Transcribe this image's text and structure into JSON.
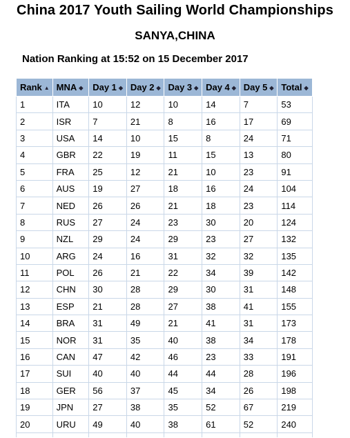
{
  "header": {
    "title": "China 2017 Youth Sailing World Championships",
    "location": "SANYA,CHINA",
    "subtitle": "Nation Ranking at 15:52 on 15 December 2017"
  },
  "table": {
    "columns": [
      {
        "label": "Rank",
        "sort_icon": "▲"
      },
      {
        "label": "MNA",
        "sort_icon": "◆"
      },
      {
        "label": "Day 1",
        "sort_icon": "◆"
      },
      {
        "label": "Day 2",
        "sort_icon": "◆"
      },
      {
        "label": "Day 3",
        "sort_icon": "◆"
      },
      {
        "label": "Day 4",
        "sort_icon": "◆"
      },
      {
        "label": "Day 5",
        "sort_icon": "◆"
      },
      {
        "label": "Total",
        "sort_icon": "◆"
      }
    ],
    "rows": [
      [
        "1",
        "ITA",
        "10",
        "12",
        "10",
        "14",
        "7",
        "53"
      ],
      [
        "2",
        "ISR",
        "7",
        "21",
        "8",
        "16",
        "17",
        "69"
      ],
      [
        "3",
        "USA",
        "14",
        "10",
        "15",
        "8",
        "24",
        "71"
      ],
      [
        "4",
        "GBR",
        "22",
        "19",
        "11",
        "15",
        "13",
        "80"
      ],
      [
        "5",
        "FRA",
        "25",
        "12",
        "21",
        "10",
        "23",
        "91"
      ],
      [
        "6",
        "AUS",
        "19",
        "27",
        "18",
        "16",
        "24",
        "104"
      ],
      [
        "7",
        "NED",
        "26",
        "26",
        "21",
        "18",
        "23",
        "114"
      ],
      [
        "8",
        "RUS",
        "27",
        "24",
        "23",
        "30",
        "20",
        "124"
      ],
      [
        "9",
        "NZL",
        "29",
        "24",
        "29",
        "23",
        "27",
        "132"
      ],
      [
        "10",
        "ARG",
        "24",
        "16",
        "31",
        "32",
        "32",
        "135"
      ],
      [
        "11",
        "POL",
        "26",
        "21",
        "22",
        "34",
        "39",
        "142"
      ],
      [
        "12",
        "CHN",
        "30",
        "28",
        "29",
        "30",
        "31",
        "148"
      ],
      [
        "13",
        "ESP",
        "21",
        "28",
        "27",
        "38",
        "41",
        "155"
      ],
      [
        "14",
        "BRA",
        "31",
        "49",
        "21",
        "41",
        "31",
        "173"
      ],
      [
        "15",
        "NOR",
        "31",
        "35",
        "40",
        "38",
        "34",
        "178"
      ],
      [
        "16",
        "CAN",
        "47",
        "42",
        "46",
        "23",
        "33",
        "191"
      ],
      [
        "17",
        "SUI",
        "40",
        "40",
        "44",
        "44",
        "28",
        "196"
      ],
      [
        "18",
        "GER",
        "56",
        "37",
        "45",
        "34",
        "26",
        "198"
      ],
      [
        "19",
        "JPN",
        "27",
        "38",
        "35",
        "52",
        "67",
        "219"
      ],
      [
        "20",
        "URU",
        "49",
        "40",
        "38",
        "61",
        "52",
        "240"
      ]
    ]
  },
  "colors": {
    "header_background": "#9cb7d6",
    "cell_border": "#c9d7e8"
  }
}
